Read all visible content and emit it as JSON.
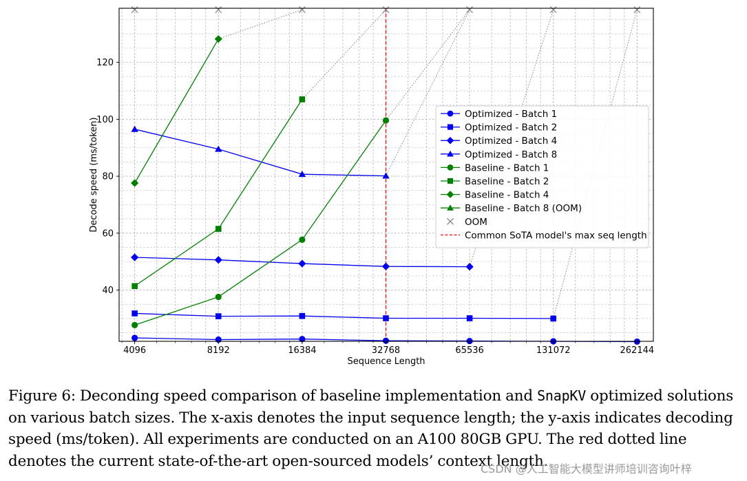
{
  "chart_data": {
    "type": "line",
    "xlabel": "Sequence Length",
    "ylabel": "Decode speed (ms/token)",
    "x_scale": "log2",
    "xlim": [
      3600,
      300000
    ],
    "ylim": [
      22,
      139
    ],
    "categories": [
      "4096",
      "8192",
      "16384",
      "32768",
      "65536",
      "131072",
      "262144"
    ],
    "x": [
      4096,
      8192,
      16384,
      32768,
      65536,
      131072,
      262144
    ],
    "yticks": [
      40,
      60,
      80,
      100,
      120
    ],
    "oom_level": 138.5,
    "reference_line": {
      "x": 32768,
      "label": "Common SoTA model's max seq length",
      "color": "#e41a1c"
    },
    "series": [
      {
        "name": "Optimized - Batch 1",
        "marker": "circle",
        "color": "#0000ee",
        "values": [
          23.2,
          22.6,
          22.8,
          22.2,
          22.1,
          22.0,
          21.9
        ],
        "oom_x": null
      },
      {
        "name": "Optimized - Batch 2",
        "marker": "square",
        "color": "#0000ee",
        "values": [
          31.8,
          30.8,
          30.9,
          30.1,
          30.1,
          30.0,
          null
        ],
        "oom_x": 262144
      },
      {
        "name": "Optimized - Batch 4",
        "marker": "diamond",
        "color": "#0000ee",
        "values": [
          51.5,
          50.6,
          49.3,
          48.3,
          48.2,
          null,
          null
        ],
        "oom_x": 131072
      },
      {
        "name": "Optimized - Batch 8",
        "marker": "triangle",
        "color": "#0000ee",
        "values": [
          96.5,
          89.5,
          80.7,
          80.1,
          null,
          null,
          null
        ],
        "oom_x": 65536
      },
      {
        "name": "Baseline - Batch 1",
        "marker": "circle",
        "color": "#007f00",
        "values": [
          27.7,
          37.6,
          57.7,
          99.6,
          null,
          null,
          null
        ],
        "oom_x": 65536
      },
      {
        "name": "Baseline - Batch 2",
        "marker": "square",
        "color": "#007f00",
        "values": [
          41.4,
          61.5,
          107.0,
          null,
          null,
          null,
          null
        ],
        "oom_x": 32768
      },
      {
        "name": "Baseline - Batch 4",
        "marker": "diamond",
        "color": "#007f00",
        "values": [
          77.6,
          128.2,
          null,
          null,
          null,
          null,
          null
        ],
        "oom_x": 16384
      },
      {
        "name": "Baseline - Batch 8 (OOM)",
        "marker": "triangle",
        "color": "#007f00",
        "values": [
          null,
          null,
          null,
          null,
          null,
          null,
          null
        ],
        "oom_x": null
      }
    ],
    "oom_markers_x": [
      4096,
      8192,
      16384,
      32768,
      65536,
      131072,
      262144
    ],
    "legend": {
      "position": "center-right",
      "entries": [
        "Optimized - Batch 1",
        "Optimized - Batch 2",
        "Optimized - Batch 4",
        "Optimized - Batch 8",
        "Baseline - Batch 1",
        "Baseline - Batch 2",
        "Baseline - Batch 4",
        "Baseline - Batch 8 (OOM)",
        "OOM",
        "Common SoTA model's max seq length"
      ]
    }
  },
  "caption": {
    "prefix": "Figure 6: Deconding speed comparison of baseline implementation and ",
    "code": "SnapKV",
    "suffix": " optimized solutions on various batch sizes. The x-axis denotes the input sequence length; the y-axis indicates decoding speed (ms/token). All experiments are conducted on an A100 80GB GPU. The red dotted line denotes the current state-of-the-art open-sourced models’ context length."
  },
  "watermark": "CSDN @人工智能大模型讲师培训咨询叶梓"
}
